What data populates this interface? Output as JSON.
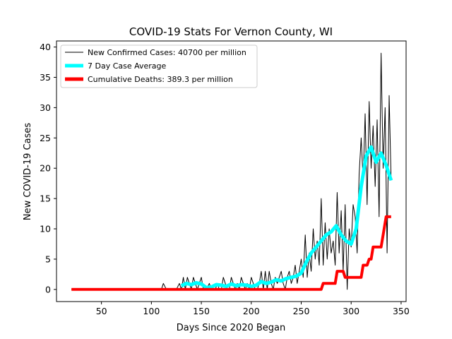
{
  "chart_data": {
    "type": "line",
    "title": "COVID-19 Stats For Vernon County, WI",
    "xlabel": "Days Since 2020 Began",
    "ylabel": "New COVID-19 Cases",
    "xlim": [
      5,
      355
    ],
    "ylim": [
      -2,
      41
    ],
    "xticks": [
      50,
      100,
      150,
      200,
      250,
      300,
      350
    ],
    "yticks": [
      0,
      5,
      10,
      15,
      20,
      25,
      30,
      35,
      40
    ],
    "grid": false,
    "legend_position": "top-left",
    "series": [
      {
        "name": "New Confirmed Cases: 40700 per million",
        "color": "#000000",
        "kind": "thin-line",
        "x": [
          20,
          40,
          60,
          80,
          100,
          110,
          112,
          115,
          120,
          125,
          128,
          130,
          132,
          134,
          136,
          138,
          140,
          142,
          144,
          146,
          148,
          150,
          152,
          155,
          158,
          160,
          162,
          164,
          166,
          168,
          170,
          172,
          174,
          176,
          178,
          180,
          182,
          184,
          186,
          188,
          190,
          192,
          194,
          196,
          198,
          200,
          202,
          204,
          206,
          208,
          210,
          212,
          214,
          216,
          218,
          220,
          222,
          224,
          226,
          228,
          230,
          232,
          234,
          236,
          238,
          240,
          242,
          244,
          246,
          248,
          250,
          252,
          254,
          256,
          258,
          260,
          262,
          264,
          266,
          268,
          270,
          272,
          274,
          276,
          278,
          280,
          282,
          284,
          286,
          288,
          290,
          292,
          294,
          296,
          298,
          300,
          302,
          304,
          306,
          308,
          310,
          312,
          314,
          316,
          318,
          320,
          322,
          324,
          326,
          328,
          330,
          332,
          334,
          336,
          338,
          340
        ],
        "values": [
          0,
          0,
          0,
          0,
          0,
          0,
          1,
          0,
          0,
          0,
          1,
          0,
          2,
          0,
          2,
          1,
          0,
          2,
          1,
          0,
          1,
          2,
          0,
          0,
          1,
          0,
          0,
          0,
          1,
          0,
          0,
          2,
          1,
          0,
          0,
          2,
          1,
          0,
          1,
          0,
          2,
          1,
          0,
          1,
          0,
          2,
          1,
          0,
          0,
          1,
          3,
          0,
          3,
          0,
          3,
          1,
          0,
          2,
          1,
          2,
          3,
          1,
          0,
          2,
          3,
          1,
          2,
          4,
          1,
          3,
          5,
          2,
          9,
          2,
          6,
          3,
          10,
          5,
          8,
          4,
          15,
          4,
          11,
          5,
          10,
          6,
          8,
          4,
          16,
          6,
          13,
          3,
          14,
          0,
          10,
          7,
          14,
          12,
          6,
          19,
          25,
          18,
          29,
          14,
          31,
          20,
          27,
          17,
          28,
          12,
          39,
          20,
          30,
          6,
          32,
          18
        ]
      },
      {
        "name": "7 Day Case Average",
        "color": "#00ffff",
        "kind": "thick-line",
        "x": [
          130,
          135,
          140,
          145,
          150,
          155,
          160,
          165,
          170,
          175,
          180,
          185,
          190,
          195,
          200,
          205,
          210,
          215,
          220,
          225,
          230,
          235,
          240,
          245,
          250,
          255,
          260,
          265,
          270,
          275,
          280,
          285,
          290,
          295,
          300,
          305,
          310,
          315,
          320,
          325,
          330,
          335,
          340
        ],
        "values": [
          0.6,
          1.0,
          0.8,
          1.1,
          0.9,
          0.3,
          0.4,
          0.8,
          0.7,
          0.5,
          0.9,
          0.6,
          0.8,
          0.7,
          0.5,
          0.7,
          1.3,
          1.0,
          1.2,
          1.6,
          1.4,
          1.8,
          2.0,
          2.2,
          2.7,
          4.5,
          6.0,
          7.0,
          8.0,
          9.0,
          9.5,
          10.5,
          9.0,
          8.0,
          7.5,
          10.0,
          17.0,
          22.0,
          23.5,
          21.0,
          22.5,
          20.5,
          18.0
        ]
      },
      {
        "name": "Cumulative Deaths: 389.3 per million",
        "color": "#ff0000",
        "kind": "thick-step",
        "x": [
          20,
          270,
          272,
          284,
          286,
          292,
          294,
          310,
          312,
          316,
          318,
          320,
          322,
          330,
          332,
          334,
          335,
          340
        ],
        "values": [
          0,
          0,
          1,
          1,
          3,
          3,
          2,
          2,
          4,
          4,
          5,
          5,
          7,
          7,
          9,
          11,
          12,
          12
        ]
      }
    ]
  }
}
